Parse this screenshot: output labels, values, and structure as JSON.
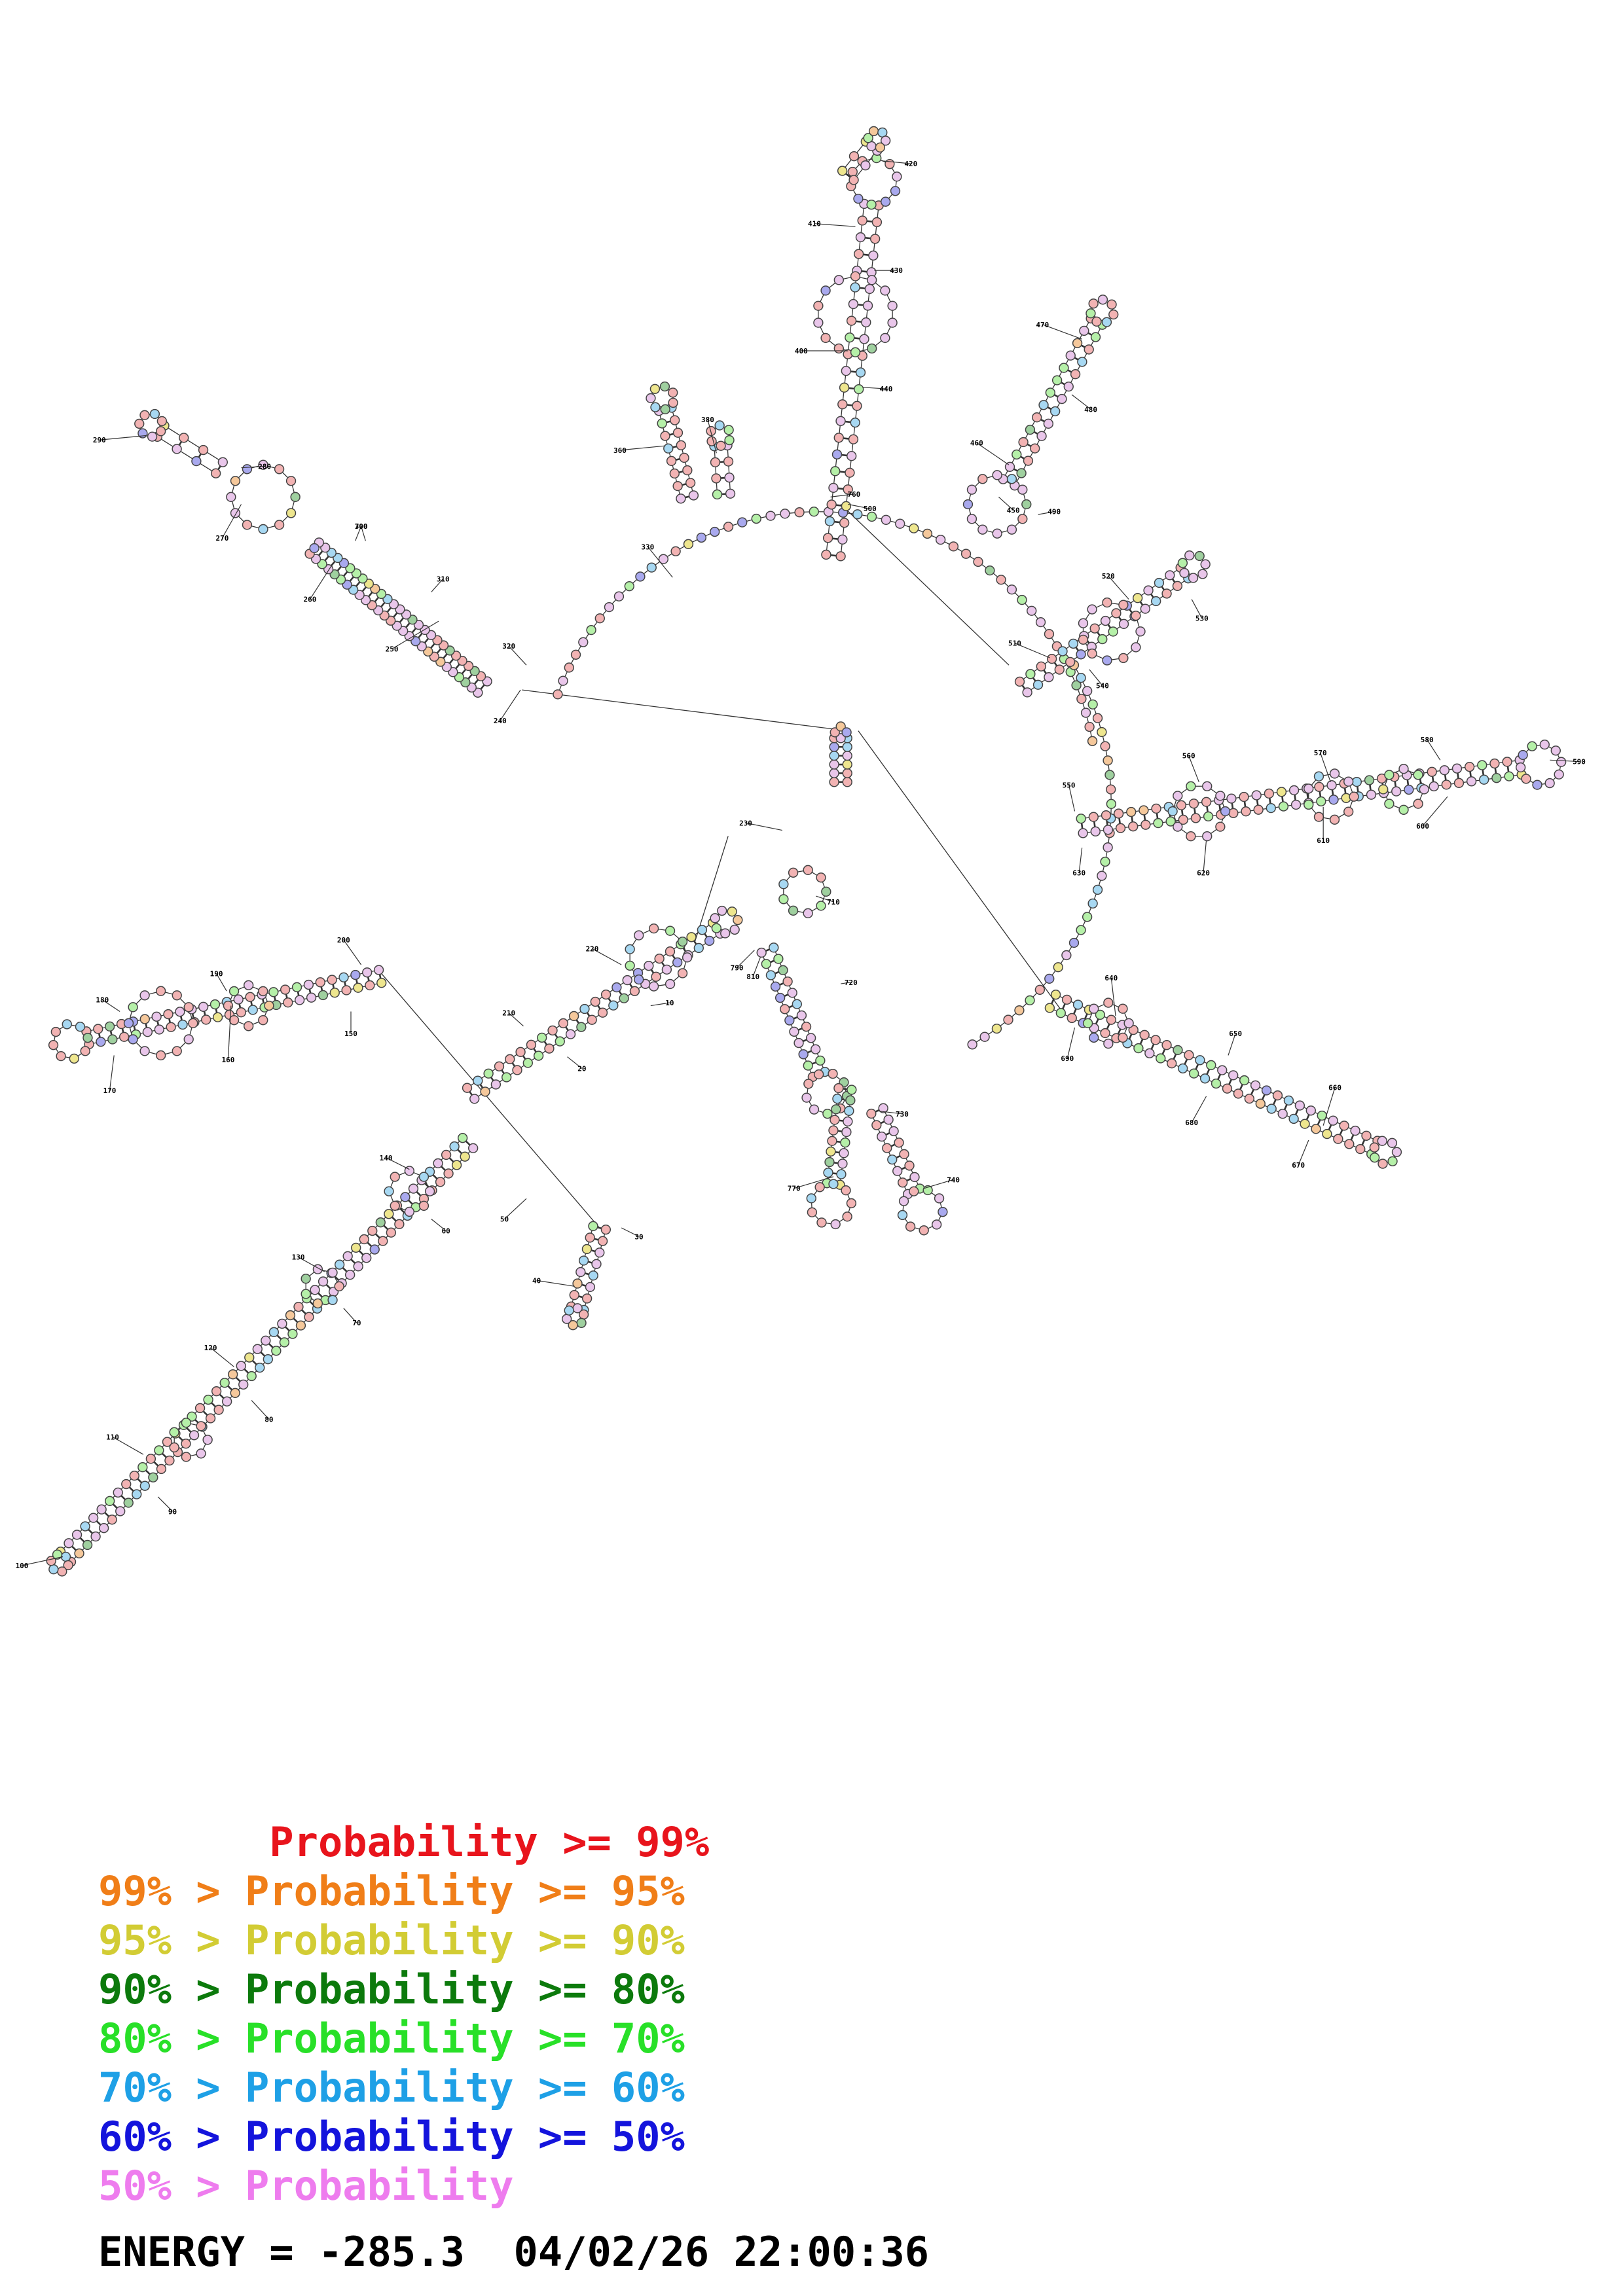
{
  "position_labels": [
    "10",
    "20",
    "30",
    "40",
    "50",
    "60",
    "70",
    "80",
    "90",
    "100",
    "110",
    "120",
    "130",
    "140",
    "150",
    "160",
    "170",
    "180",
    "190",
    "200",
    "210",
    "220",
    "230",
    "240",
    "250",
    "260",
    "270",
    "280",
    "290",
    "300",
    "310",
    "320",
    "330",
    "340",
    "350",
    "360",
    "370",
    "380",
    "390",
    "400",
    "410",
    "420",
    "430",
    "440",
    "450",
    "460",
    "470",
    "480",
    "490",
    "500",
    "510",
    "520",
    "530",
    "540",
    "550",
    "560",
    "570",
    "580",
    "590",
    "600",
    "610",
    "620",
    "630",
    "640",
    "650",
    "660",
    "670",
    "680",
    "690",
    "700",
    "710",
    "720",
    "730",
    "740",
    "750",
    "760",
    "770",
    "780",
    "790",
    "800",
    "810"
  ],
  "legend": [
    {
      "text": "       Probability >= 99%",
      "color": "#e8141c"
    },
    {
      "text": "99% > Probability >= 95%",
      "color": "#f07e18"
    },
    {
      "text": "95% > Probability >= 90%",
      "color": "#d2cc34"
    },
    {
      "text": "90% > Probability >= 80%",
      "color": "#0c7a0c"
    },
    {
      "text": "80% > Probability >= 70%",
      "color": "#28e028"
    },
    {
      "text": "70% > Probability >= 60%",
      "color": "#1ea0e6"
    },
    {
      "text": "60% > Probability >= 50%",
      "color": "#1414dc"
    },
    {
      "text": "50% > Probability",
      "color": "#ee7cee"
    }
  ],
  "energy_line": "ENERGY = -285.3  04/02/26 22:00:36"
}
